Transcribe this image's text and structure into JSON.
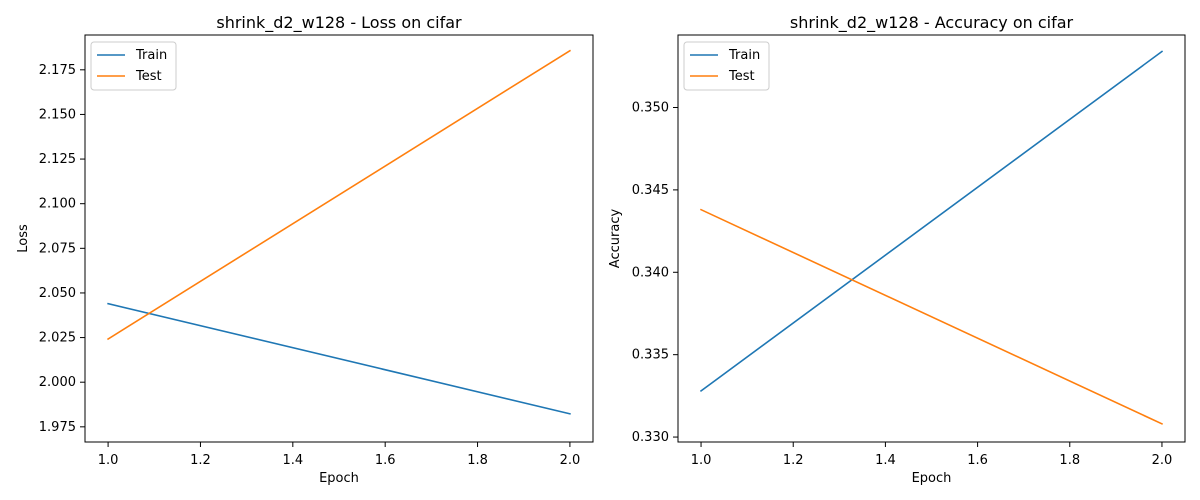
{
  "chart_data": [
    {
      "type": "line",
      "title": "shrink_d2_w128 - Loss on cifar",
      "xlabel": "Epoch",
      "ylabel": "Loss",
      "xlim": [
        0.95,
        2.05
      ],
      "ylim": [
        1.9665,
        2.1945
      ],
      "xticks": [
        1.0,
        1.2,
        1.4,
        1.6,
        1.8,
        2.0
      ],
      "xtick_labels": [
        "1.0",
        "1.2",
        "1.4",
        "1.6",
        "1.8",
        "2.0"
      ],
      "yticks": [
        1.975,
        2.0,
        2.025,
        2.05,
        2.075,
        2.1,
        2.125,
        2.15,
        2.175
      ],
      "ytick_labels": [
        "1.975",
        "2.000",
        "2.025",
        "2.050",
        "2.075",
        "2.100",
        "2.125",
        "2.150",
        "2.175"
      ],
      "legend_position": "upper left",
      "grid": false,
      "series": [
        {
          "name": "Train",
          "color": "#1f77b4",
          "x": [
            1.0,
            2.0
          ],
          "values": [
            2.044,
            1.9823
          ]
        },
        {
          "name": "Test",
          "color": "#ff7f0e",
          "x": [
            1.0,
            2.0
          ],
          "values": [
            2.0242,
            2.1857
          ]
        }
      ]
    },
    {
      "type": "line",
      "title": "shrink_d2_w128 - Accuracy on cifar",
      "xlabel": "Epoch",
      "ylabel": "Accuracy",
      "xlim": [
        0.95,
        2.05
      ],
      "ylim": [
        0.3297,
        0.3544
      ],
      "xticks": [
        1.0,
        1.2,
        1.4,
        1.6,
        1.8,
        2.0
      ],
      "xtick_labels": [
        "1.0",
        "1.2",
        "1.4",
        "1.6",
        "1.8",
        "2.0"
      ],
      "yticks": [
        0.33,
        0.335,
        0.34,
        0.345,
        0.35
      ],
      "ytick_labels": [
        "0.330",
        "0.335",
        "0.340",
        "0.345",
        "0.350"
      ],
      "legend_position": "upper left",
      "grid": false,
      "series": [
        {
          "name": "Train",
          "color": "#1f77b4",
          "x": [
            1.0,
            2.0
          ],
          "values": [
            0.3328,
            0.3534
          ]
        },
        {
          "name": "Test",
          "color": "#ff7f0e",
          "x": [
            1.0,
            2.0
          ],
          "values": [
            0.3438,
            0.3308
          ]
        }
      ]
    }
  ]
}
